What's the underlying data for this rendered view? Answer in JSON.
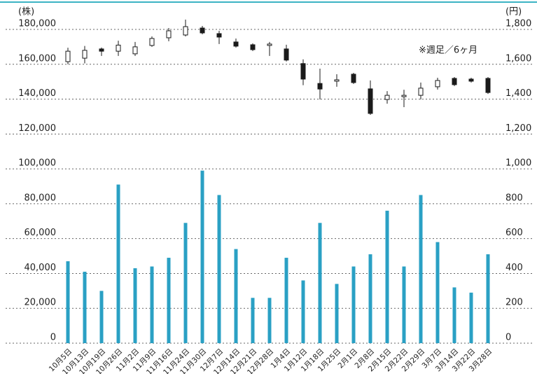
{
  "chart_data": {
    "type": "candlestick",
    "annotation": "※週足／6ヶ月",
    "y_unit": "(株)",
    "y2_unit": "(円)",
    "categories": [
      "10月5日",
      "10月13日",
      "10月19日",
      "10月26日",
      "11月2日",
      "11月9日",
      "11月16日",
      "11月24日",
      "11月30日",
      "12月7日",
      "12月14日",
      "12月21日",
      "12月28日",
      "1月4日",
      "1月12日",
      "1月18日",
      "1月25日",
      "2月1日",
      "2月8日",
      "2月15日",
      "2月22日",
      "2月29日",
      "3月7日",
      "3月14日",
      "3月22日",
      "3月28日"
    ],
    "volume": {
      "color": "#2aa0c4",
      "axis": "y",
      "values": [
        47000,
        41000,
        30000,
        91000,
        43000,
        44000,
        49000,
        69000,
        99000,
        85000,
        54000,
        26000,
        26000,
        49000,
        36000,
        69000,
        34000,
        44000,
        51000,
        76000,
        44000,
        85000,
        58000,
        32000,
        29000,
        51000
      ]
    },
    "candles": {
      "axis": "y2",
      "up_color": "#ffffff",
      "down_color": "#1a1a1a",
      "open": [
        1615,
        1635,
        1688,
        1675,
        1660,
        1708,
        1752,
        1768,
        1808,
        1776,
        1728,
        1712,
        1708,
        1688,
        1604,
        1490,
        1503,
        1543,
        1459,
        1398,
        1414,
        1422,
        1471,
        1519,
        1515,
        1519
      ],
      "high": [
        1695,
        1705,
        1696,
        1735,
        1728,
        1760,
        1808,
        1856,
        1820,
        1792,
        1748,
        1720,
        1728,
        1712,
        1628,
        1575,
        1543,
        1551,
        1507,
        1446,
        1454,
        1495,
        1523,
        1527,
        1523,
        1527
      ],
      "low": [
        1600,
        1605,
        1648,
        1648,
        1648,
        1700,
        1732,
        1760,
        1772,
        1716,
        1696,
        1676,
        1648,
        1616,
        1480,
        1398,
        1471,
        1487,
        1310,
        1374,
        1354,
        1398,
        1455,
        1475,
        1495,
        1430
      ],
      "close": [
        1675,
        1680,
        1675,
        1710,
        1700,
        1748,
        1792,
        1816,
        1780,
        1756,
        1704,
        1684,
        1716,
        1624,
        1515,
        1458,
        1511,
        1495,
        1318,
        1422,
        1422,
        1463,
        1507,
        1483,
        1503,
        1438
      ]
    },
    "ylim": [
      0,
      180000
    ],
    "yticks": [
      0,
      {
        "value": 20000,
        "label": "20,000"
      },
      {
        "value": 40000,
        "label": "40,000"
      },
      {
        "value": 60000,
        "label": "60,000"
      },
      {
        "value": 80000,
        "label": "80,000"
      },
      {
        "value": 100000,
        "label": "100,000"
      },
      {
        "value": 120000,
        "label": "120,000"
      },
      {
        "value": 140000,
        "label": "140,000"
      },
      {
        "value": 160000,
        "label": "160,000"
      },
      {
        "value": 180000,
        "label": "180,000"
      }
    ],
    "y2lim": [
      0,
      1800
    ],
    "y2ticks": [
      0,
      200,
      400,
      600,
      800,
      {
        "value": 1000,
        "label": "1,000"
      },
      {
        "value": 1200,
        "label": "1,200"
      },
      {
        "value": 1400,
        "label": "1,400"
      },
      {
        "value": 1600,
        "label": "1,600"
      },
      {
        "value": 1800,
        "label": "1,800"
      }
    ],
    "grid": true
  }
}
